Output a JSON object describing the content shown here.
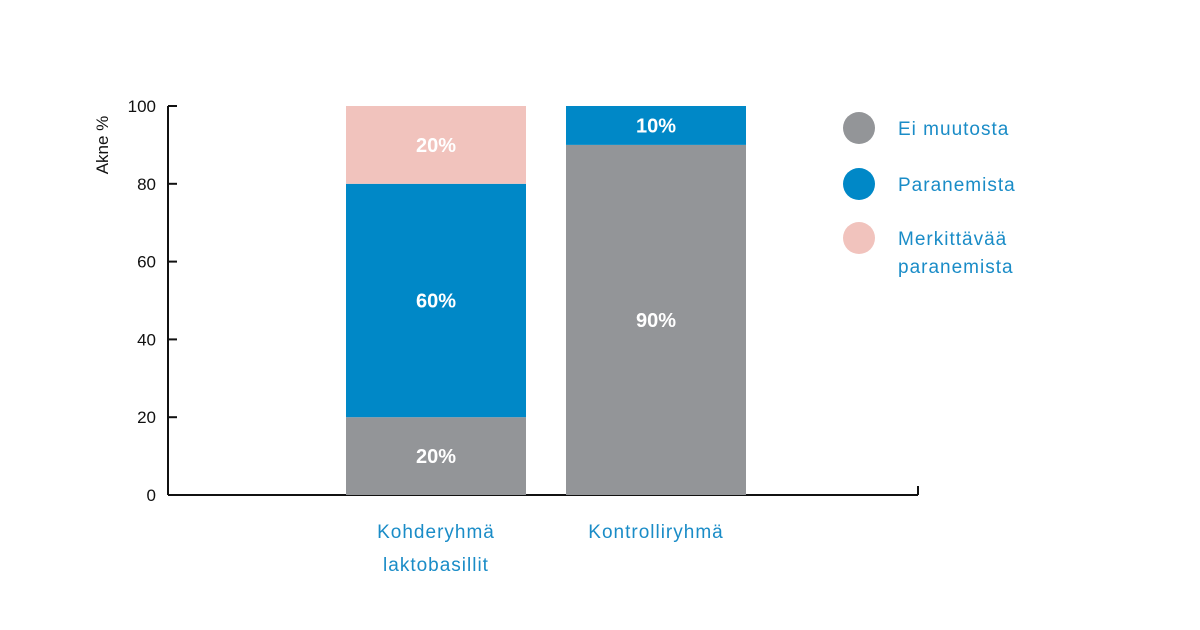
{
  "chart_data": {
    "type": "bar",
    "stacked": true,
    "ylabel": "Akne %",
    "ylim": [
      0,
      100
    ],
    "yticks": [
      "0",
      "20",
      "40",
      "60",
      "80",
      "100"
    ],
    "categories": [
      [
        "Kohderyhmä",
        "laktobasillit"
      ],
      [
        "Kontrolliryhmä"
      ]
    ],
    "series": [
      {
        "name": "Ei muutosta",
        "color": "#939598",
        "values": [
          20,
          90
        ],
        "labels": [
          "20%",
          "90%"
        ]
      },
      {
        "name": "Paranemista",
        "color": "#0088c7",
        "values": [
          60,
          10
        ],
        "labels": [
          "60%",
          "10%"
        ]
      },
      {
        "name": "Merkittävää paranemista",
        "legend_lines": [
          "Merkittävää",
          "paranemista"
        ],
        "color": "#f1c3bd",
        "values": [
          20,
          0
        ],
        "labels": [
          "20%",
          ""
        ]
      }
    ],
    "grid": false,
    "legend_position": "right"
  }
}
